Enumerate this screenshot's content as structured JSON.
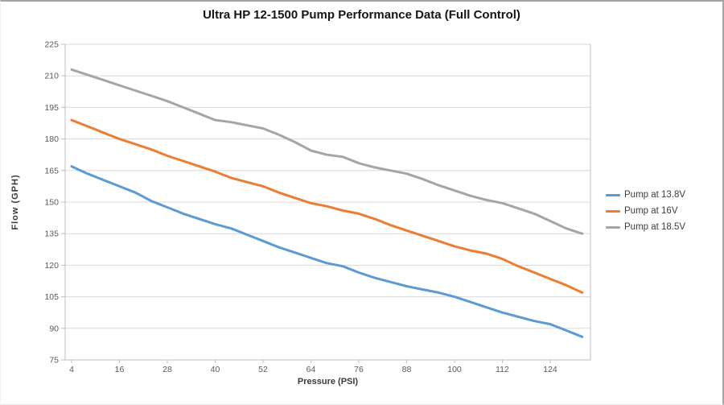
{
  "chart_data": {
    "type": "line",
    "title": "Ultra HP 12-1500 Pump Performance Data (Full Control)",
    "xlabel": "Pressure (PSI)",
    "ylabel": "Flow (GPH)",
    "ylim": [
      75,
      225
    ],
    "y_step": 15,
    "x_ticks": [
      4,
      16,
      28,
      40,
      52,
      64,
      76,
      88,
      100,
      112,
      124
    ],
    "grid": "horizontal",
    "legend_position": "right",
    "axis_color": "#bfbfbf",
    "gridline_color": "#d9d9d9",
    "tick_label_color": "#595959",
    "x": [
      4,
      8,
      12,
      16,
      20,
      24,
      28,
      32,
      36,
      40,
      44,
      48,
      52,
      56,
      60,
      64,
      68,
      72,
      76,
      80,
      84,
      88,
      92,
      96,
      100,
      104,
      108,
      112,
      116,
      120,
      124,
      128,
      132
    ],
    "series": [
      {
        "name": "Pump at 13.8V",
        "color": "#5B9BD5",
        "values": [
          167,
          163.5,
          160.5,
          157.5,
          154.5,
          150.5,
          147.5,
          144.5,
          142,
          139.5,
          137.5,
          134.5,
          131.5,
          128.5,
          126,
          123.5,
          121,
          119.5,
          116.5,
          114,
          112,
          110,
          108.5,
          107,
          105,
          102.5,
          100,
          97.5,
          95.5,
          93.5,
          92,
          89,
          86
        ]
      },
      {
        "name": "Pump at 16V",
        "color": "#ED7D31",
        "values": [
          189,
          186,
          183,
          180,
          177.5,
          175,
          172,
          169.5,
          167,
          164.5,
          161.5,
          159.5,
          157.5,
          154.5,
          152,
          149.5,
          148,
          146,
          144.5,
          142,
          139,
          136.5,
          134,
          131.5,
          129,
          127,
          125.5,
          123,
          119.5,
          116.5,
          113.5,
          110.5,
          107
        ]
      },
      {
        "name": "Pump at 18.5V",
        "color": "#A5A5A5",
        "values": [
          213,
          210.5,
          208,
          205.5,
          203,
          200.5,
          198,
          195,
          192,
          189,
          188,
          186.5,
          185,
          182,
          178.5,
          174.5,
          172.5,
          171.5,
          168.5,
          166.5,
          165,
          163.5,
          161,
          158,
          155.5,
          153,
          151,
          149.5,
          147,
          144.5,
          141,
          137.5,
          135
        ]
      }
    ]
  }
}
